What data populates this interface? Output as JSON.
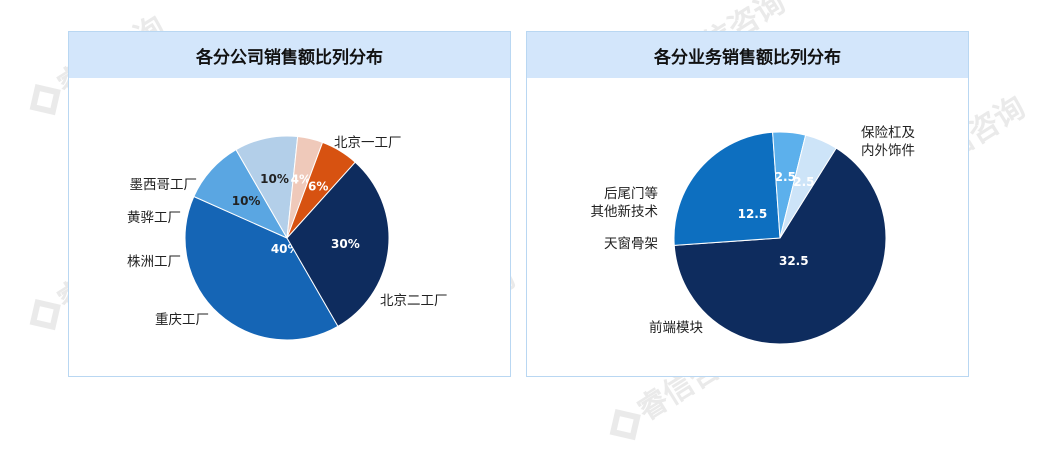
{
  "watermark": "睿信咨询",
  "chart_data": [
    {
      "type": "pie",
      "title": "各分公司销售额比列分布",
      "slices": [
        {
          "label": "北京二工厂",
          "value": 40,
          "display": "40%",
          "color": "#1565b5",
          "text_color": "#ffffff"
        },
        {
          "label": "重庆工厂",
          "value": 10,
          "display": "10%",
          "color": "#5aa6e2",
          "text_color": "#222222"
        },
        {
          "label": "株洲工厂",
          "value": 10,
          "display": "10%",
          "color": "#b3cfe9",
          "text_color": "#222222"
        },
        {
          "label": "黄骅工厂",
          "value": 4,
          "display": "4%",
          "color": "#efc9ba",
          "text_color": "#ffffff"
        },
        {
          "label": "墨西哥工厂",
          "value": 6,
          "display": "6%",
          "color": "#d75211",
          "text_color": "#ffffff"
        },
        {
          "label": "北京一工厂",
          "value": 30,
          "display": "30%",
          "color": "#0e2c5e",
          "text_color": "#ffffff"
        }
      ]
    },
    {
      "type": "pie",
      "title": "各分业务销售额比列分布",
      "slices": [
        {
          "label": "保险杠及内外饰件",
          "value": 32.5,
          "display": "32.5",
          "color": "#0e2c5e",
          "text_color": "#ffffff"
        },
        {
          "label": "前端模块",
          "value": 12.5,
          "display": "12.5",
          "color": "#0d6fc0",
          "text_color": "#ffffff"
        },
        {
          "label": "天窗骨架",
          "value": 2.5,
          "display": "2.5",
          "color": "#5cb0ec",
          "text_color": "#ffffff"
        },
        {
          "label": "后尾门等其他新技术",
          "value": 2.5,
          "display": "2.5",
          "color": "#cde4f8",
          "text_color": "#ffffff"
        }
      ]
    }
  ]
}
